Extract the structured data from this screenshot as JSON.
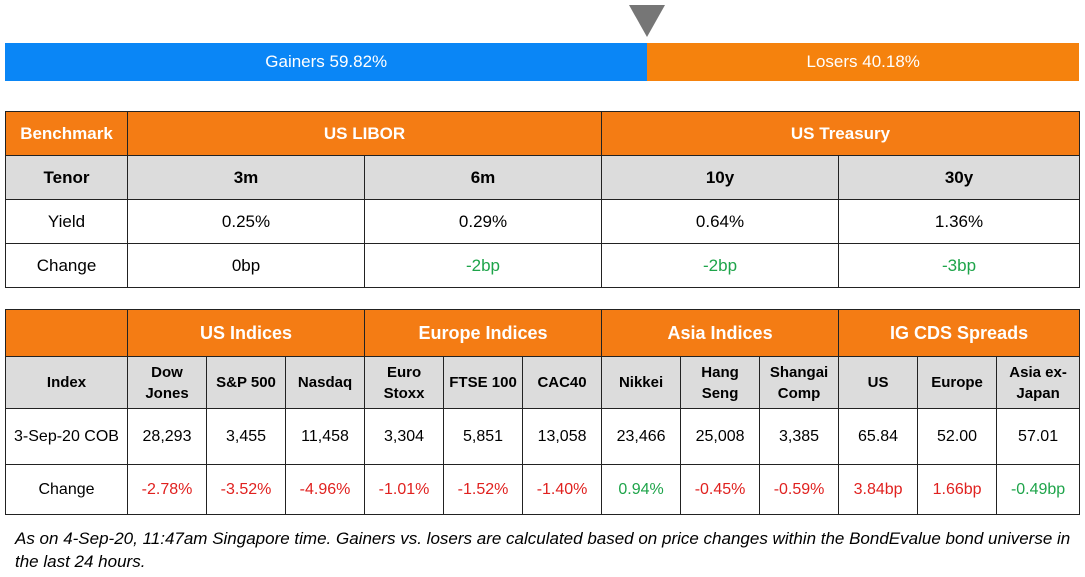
{
  "gainers_losers": {
    "gainers_label": "Gainers 59.82%",
    "losers_label": "Losers 40.18%",
    "gainers_pct": 59.82,
    "losers_pct": 40.18,
    "gainers_color": "#0a86f6",
    "losers_color": "#f5820d"
  },
  "benchmark_table": {
    "header": {
      "benchmark": "Benchmark",
      "group1": "US LIBOR",
      "group2": "US Treasury"
    },
    "tenor_label": "Tenor",
    "tenors": [
      "3m",
      "6m",
      "10y",
      "30y"
    ],
    "yield_label": "Yield",
    "yields": [
      "0.25%",
      "0.29%",
      "0.64%",
      "1.36%"
    ],
    "change_label": "Change",
    "changes": [
      "0bp",
      "-2bp",
      "-2bp",
      "-3bp"
    ],
    "change_colors": [
      "neutral",
      "pos",
      "pos",
      "pos"
    ]
  },
  "indices_table": {
    "groups": [
      "US Indices",
      "Europe Indices",
      "Asia Indices",
      "IG CDS Spreads"
    ],
    "index_label": "Index",
    "columns": [
      "Dow Jones",
      "S&P 500",
      "Nasdaq",
      "Euro Stoxx",
      "FTSE 100",
      "CAC40",
      "Nikkei",
      "Hang Seng",
      "Shangai Comp",
      "US",
      "Europe",
      "Asia ex-Japan"
    ],
    "date_label": "3-Sep-20 COB",
    "values": [
      "28,293",
      "3,455",
      "11,458",
      "3,304",
      "5,851",
      "13,058",
      "23,466",
      "25,008",
      "3,385",
      "65.84",
      "52.00",
      "57.01"
    ],
    "change_label": "Change",
    "changes": [
      "-2.78%",
      "-3.52%",
      "-4.96%",
      "-1.01%",
      "-1.52%",
      "-1.40%",
      "0.94%",
      "-0.45%",
      "-0.59%",
      "3.84bp",
      "1.66bp",
      "-0.49bp"
    ],
    "change_colors": [
      "neg",
      "neg",
      "neg",
      "neg",
      "neg",
      "neg",
      "pos",
      "neg",
      "neg",
      "neg",
      "neg",
      "pos"
    ]
  },
  "footnote": "As on 4-Sep-20, 11:47am Singapore time. Gainers vs. losers are calculated based on price changes within the BondEvalue bond universe in the last 24 hours.",
  "colors": {
    "header_orange": "#f47c14",
    "subheader_grey": "#dcdcdc",
    "negative_red": "#e0211f",
    "positive_green": "#1ea44a"
  }
}
